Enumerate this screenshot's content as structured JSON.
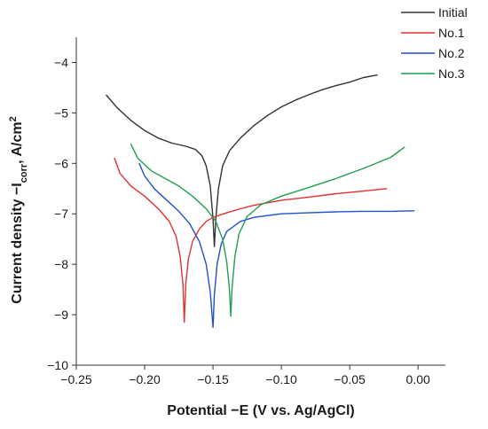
{
  "chart_data": {
    "type": "line",
    "title": "",
    "xlabel": "Potential −E (V vs. Ag/AgCl)",
    "ylabel": {
      "prefix": "Current density −I",
      "sub": "corr",
      "mid": ", A/cm",
      "sup": "2"
    },
    "xlim": [
      -0.25,
      0.02
    ],
    "ylim": [
      -10,
      -3.5
    ],
    "xticks": [
      -0.25,
      -0.2,
      -0.15,
      -0.1,
      -0.05,
      0.0
    ],
    "xtick_labels": [
      "−0.25",
      "−0.20",
      "−0.15",
      "−0.10",
      "−0.05",
      "0.00"
    ],
    "yticks": [
      -10,
      -9,
      -8,
      -7,
      -6,
      -5,
      -4
    ],
    "ytick_labels": [
      "−10",
      "−9",
      "−8",
      "−7",
      "−6",
      "−5",
      "−4"
    ],
    "grid": false,
    "legend": "top-right",
    "series": [
      {
        "name": "Initial",
        "color": "#333333",
        "points": [
          [
            -0.228,
            -4.65
          ],
          [
            -0.22,
            -4.9
          ],
          [
            -0.21,
            -5.15
          ],
          [
            -0.2,
            -5.35
          ],
          [
            -0.19,
            -5.5
          ],
          [
            -0.18,
            -5.6
          ],
          [
            -0.17,
            -5.66
          ],
          [
            -0.163,
            -5.72
          ],
          [
            -0.158,
            -5.85
          ],
          [
            -0.155,
            -6.05
          ],
          [
            -0.152,
            -6.45
          ],
          [
            -0.15,
            -7.1
          ],
          [
            -0.149,
            -7.65
          ],
          [
            -0.148,
            -7.1
          ],
          [
            -0.146,
            -6.5
          ],
          [
            -0.143,
            -6.05
          ],
          [
            -0.138,
            -5.75
          ],
          [
            -0.13,
            -5.5
          ],
          [
            -0.12,
            -5.25
          ],
          [
            -0.11,
            -5.05
          ],
          [
            -0.1,
            -4.88
          ],
          [
            -0.09,
            -4.75
          ],
          [
            -0.08,
            -4.64
          ],
          [
            -0.07,
            -4.54
          ],
          [
            -0.06,
            -4.46
          ],
          [
            -0.05,
            -4.39
          ],
          [
            -0.04,
            -4.3
          ],
          [
            -0.03,
            -4.25
          ]
        ]
      },
      {
        "name": "No.1",
        "color": "#e03030",
        "points": [
          [
            -0.222,
            -5.9
          ],
          [
            -0.218,
            -6.2
          ],
          [
            -0.21,
            -6.45
          ],
          [
            -0.2,
            -6.65
          ],
          [
            -0.19,
            -6.9
          ],
          [
            -0.182,
            -7.15
          ],
          [
            -0.177,
            -7.45
          ],
          [
            -0.174,
            -7.85
          ],
          [
            -0.172,
            -8.4
          ],
          [
            -0.171,
            -9.15
          ],
          [
            -0.17,
            -8.4
          ],
          [
            -0.168,
            -7.9
          ],
          [
            -0.165,
            -7.55
          ],
          [
            -0.16,
            -7.3
          ],
          [
            -0.155,
            -7.15
          ],
          [
            -0.15,
            -7.07
          ],
          [
            -0.14,
            -6.98
          ],
          [
            -0.13,
            -6.9
          ],
          [
            -0.12,
            -6.83
          ],
          [
            -0.1,
            -6.73
          ],
          [
            -0.08,
            -6.67
          ],
          [
            -0.06,
            -6.6
          ],
          [
            -0.04,
            -6.55
          ],
          [
            -0.023,
            -6.5
          ]
        ]
      },
      {
        "name": "No.2",
        "color": "#2050d0",
        "points": [
          [
            -0.204,
            -6.0
          ],
          [
            -0.2,
            -6.25
          ],
          [
            -0.193,
            -6.5
          ],
          [
            -0.185,
            -6.7
          ],
          [
            -0.175,
            -6.95
          ],
          [
            -0.167,
            -7.2
          ],
          [
            -0.16,
            -7.55
          ],
          [
            -0.155,
            -8.0
          ],
          [
            -0.152,
            -8.55
          ],
          [
            -0.15,
            -9.25
          ],
          [
            -0.149,
            -8.6
          ],
          [
            -0.147,
            -8.0
          ],
          [
            -0.144,
            -7.6
          ],
          [
            -0.14,
            -7.35
          ],
          [
            -0.13,
            -7.15
          ],
          [
            -0.12,
            -7.07
          ],
          [
            -0.1,
            -7.0
          ],
          [
            -0.08,
            -6.98
          ],
          [
            -0.06,
            -6.96
          ],
          [
            -0.04,
            -6.95
          ],
          [
            -0.02,
            -6.95
          ],
          [
            -0.003,
            -6.94
          ]
        ]
      },
      {
        "name": "No.3",
        "color": "#20a050",
        "points": [
          [
            -0.21,
            -5.62
          ],
          [
            -0.205,
            -5.9
          ],
          [
            -0.195,
            -6.15
          ],
          [
            -0.185,
            -6.3
          ],
          [
            -0.175,
            -6.45
          ],
          [
            -0.165,
            -6.65
          ],
          [
            -0.155,
            -6.9
          ],
          [
            -0.148,
            -7.15
          ],
          [
            -0.143,
            -7.5
          ],
          [
            -0.14,
            -7.95
          ],
          [
            -0.138,
            -8.5
          ],
          [
            -0.137,
            -9.03
          ],
          [
            -0.136,
            -8.45
          ],
          [
            -0.134,
            -7.85
          ],
          [
            -0.131,
            -7.4
          ],
          [
            -0.125,
            -7.05
          ],
          [
            -0.115,
            -6.82
          ],
          [
            -0.1,
            -6.65
          ],
          [
            -0.08,
            -6.48
          ],
          [
            -0.06,
            -6.3
          ],
          [
            -0.04,
            -6.1
          ],
          [
            -0.02,
            -5.88
          ],
          [
            -0.01,
            -5.68
          ]
        ]
      }
    ]
  }
}
